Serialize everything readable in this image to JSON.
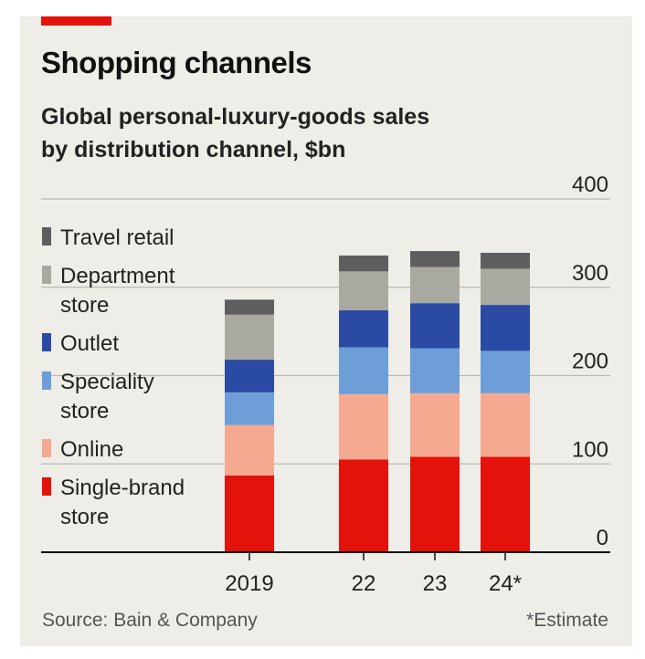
{
  "header": {
    "title": "Shopping channels",
    "subtitle_line1": "Global personal-luxury-goods sales",
    "subtitle_line2": "by distribution channel, $bn"
  },
  "footer": {
    "source": "Source: Bain & Company",
    "note": "*Estimate"
  },
  "chart_data": {
    "type": "bar",
    "stacked": true,
    "title": "Shopping channels",
    "subtitle": "Global personal-luxury-goods sales by distribution channel, $bn",
    "xlabel": "",
    "ylabel": "$bn",
    "ylim": [
      0,
      400
    ],
    "yticks": [
      "0",
      "100",
      "200",
      "300",
      "400"
    ],
    "ytick_values": [
      0,
      100,
      200,
      300,
      400
    ],
    "y_axis_side": "right",
    "grid": true,
    "legend_position": "top-left",
    "categories": [
      "2019",
      "22",
      "23",
      "24*"
    ],
    "series": [
      {
        "name": "Single-brand store",
        "legend_lines": [
          "Single-brand",
          "store"
        ],
        "color": "#e3120b",
        "values": [
          87,
          105,
          108,
          108
        ]
      },
      {
        "name": "Online",
        "legend_lines": [
          "Online"
        ],
        "color": "#f5a991",
        "values": [
          57,
          74,
          72,
          72
        ]
      },
      {
        "name": "Speciality store",
        "legend_lines": [
          "Speciality",
          "store"
        ],
        "color": "#6d9ed8",
        "values": [
          37,
          53,
          51,
          48
        ]
      },
      {
        "name": "Outlet",
        "legend_lines": [
          "Outlet"
        ],
        "color": "#2b4aa3",
        "values": [
          37,
          42,
          51,
          52
        ]
      },
      {
        "name": "Department store",
        "legend_lines": [
          "Department",
          "store"
        ],
        "color": "#a9a9a1",
        "values": [
          51,
          44,
          41,
          41
        ]
      },
      {
        "name": "Travel retail",
        "legend_lines": [
          "Travel retail"
        ],
        "color": "#5e5e5e",
        "values": [
          17,
          18,
          18,
          18
        ]
      }
    ]
  }
}
